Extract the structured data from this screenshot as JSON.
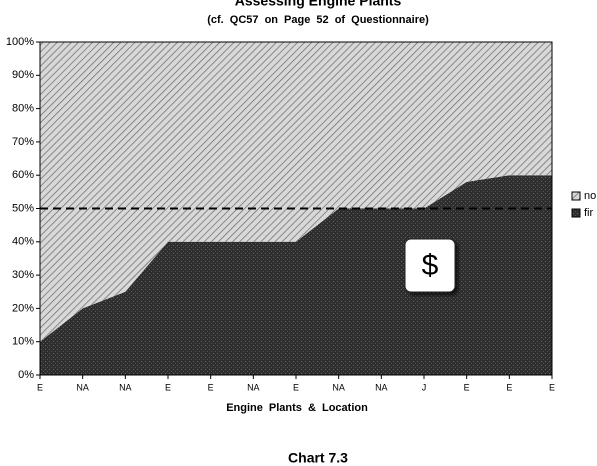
{
  "chart_data": {
    "type": "stacked_area",
    "title": "Assessing Engine Plants",
    "subtitle": "(cf. QC57 on Page 52 of Questionnaire)",
    "x_label": "Engine Plants & Location",
    "caption": "Chart 7.3",
    "annotation": "$",
    "reference_line": 50,
    "categories": [
      "E",
      "NA",
      "NA",
      "E",
      "E",
      "NA",
      "E",
      "NA",
      "NA",
      "J",
      "E",
      "E",
      "E"
    ],
    "series": [
      {
        "name": "fir",
        "color": "#3a3a3a",
        "values": [
          10,
          20,
          25,
          40,
          40,
          40,
          40,
          50,
          50,
          50,
          58,
          60,
          60
        ]
      },
      {
        "name": "no",
        "color": "#b0b0b0",
        "values": [
          90,
          80,
          75,
          60,
          60,
          60,
          60,
          50,
          50,
          50,
          42,
          40,
          40
        ]
      }
    ],
    "ylim": [
      0,
      100
    ],
    "yticks": [
      {
        "value": 0,
        "label": "0%"
      },
      {
        "value": 10,
        "label": "10%"
      },
      {
        "value": 20,
        "label": "20%"
      },
      {
        "value": 30,
        "label": "30%"
      },
      {
        "value": 40,
        "label": "40%"
      },
      {
        "value": 50,
        "label": "50%"
      },
      {
        "value": 60,
        "label": "60%"
      },
      {
        "value": 70,
        "label": "70%"
      },
      {
        "value": 80,
        "label": "80%"
      },
      {
        "value": 90,
        "label": "90%"
      },
      {
        "value": 100,
        "label": "100%"
      }
    ],
    "legend": "right"
  }
}
